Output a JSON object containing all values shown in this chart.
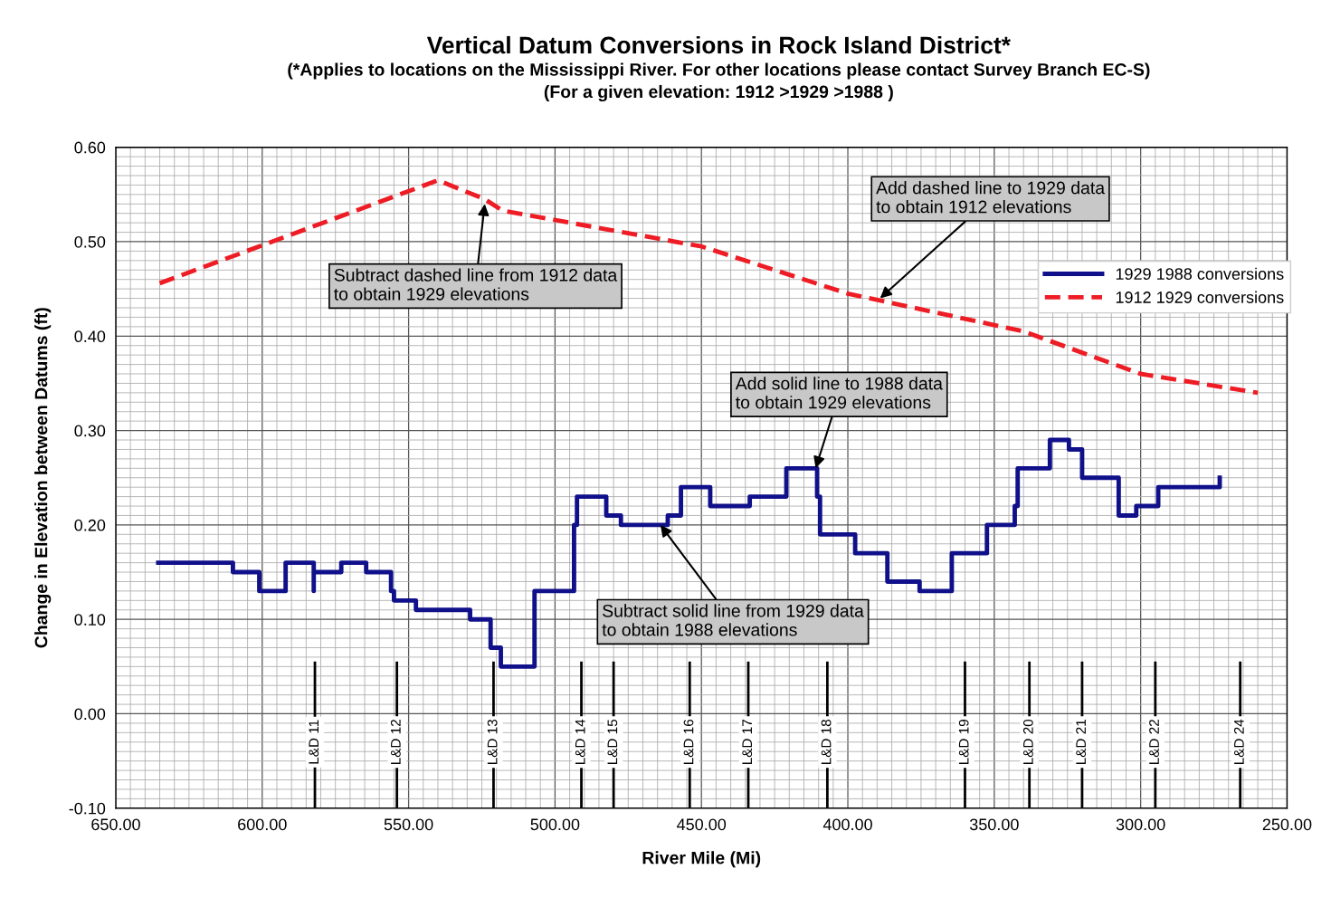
{
  "chart_data": {
    "type": "step",
    "title": "Vertical Datum Conversions in Rock Island District*",
    "subtitle": "(*Applies to locations on the Mississippi River. For other locations please contact Survey Branch EC-S)\n(For a given elevation: 1912 >1929 >1988 )",
    "xlabel": "River Mile (Mi)",
    "ylabel": "Change in Elevation between Datums (ft)",
    "xlim": [
      650,
      250
    ],
    "xticks": [
      {
        "value": 650,
        "label": "650.00"
      },
      {
        "value": 600,
        "label": "600.00"
      },
      {
        "value": 550,
        "label": "550.00"
      },
      {
        "value": 500,
        "label": "500.00"
      },
      {
        "value": 450,
        "label": "450.00"
      },
      {
        "value": 400,
        "label": "400.00"
      },
      {
        "value": 350,
        "label": "350.00"
      },
      {
        "value": 300,
        "label": "300.00"
      },
      {
        "value": 250,
        "label": "250.00"
      }
    ],
    "ylim": [
      -0.1,
      0.6
    ],
    "yticks": [
      {
        "value": -0.1,
        "label": "-0.10"
      },
      {
        "value": 0,
        "label": "0.00"
      },
      {
        "value": 0.1,
        "label": "0.10"
      },
      {
        "value": 0.2,
        "label": "0.20"
      },
      {
        "value": 0.3,
        "label": "0.30"
      },
      {
        "value": 0.4,
        "label": "0.40"
      },
      {
        "value": 0.5,
        "label": "0.50"
      },
      {
        "value": 0.6,
        "label": "0.60"
      }
    ],
    "grid": true,
    "legend": "top right",
    "series": [
      {
        "name": "1929 1988 conversions",
        "color": "#10108a",
        "line_style": "solid",
        "x": [
          635.5,
          610,
          601,
          592,
          582.4,
          582.4,
          573,
          564.5,
          556,
          555,
          547.5,
          529,
          522,
          518.5,
          507,
          493.5,
          492.5,
          482.5,
          477.5,
          461.5,
          457,
          447,
          433.5,
          421,
          410.5,
          409.5,
          397.5,
          386.5,
          375.5,
          364.5,
          352.5,
          343,
          342,
          331,
          324.5,
          320,
          307.5,
          301.5,
          294,
          273,
          273
        ],
        "values": [
          0.16,
          0.15,
          0.13,
          0.16,
          0.13,
          0.15,
          0.16,
          0.15,
          0.13,
          0.12,
          0.11,
          0.1,
          0.07,
          0.05,
          0.13,
          0.2,
          0.23,
          0.21,
          0.2,
          0.21,
          0.24,
          0.22,
          0.23,
          0.26,
          0.23,
          0.19,
          0.17,
          0.14,
          0.13,
          0.17,
          0.2,
          0.22,
          0.26,
          0.29,
          0.28,
          0.25,
          0.21,
          0.22,
          0.24,
          0.24,
          0.25
        ]
      },
      {
        "name": "1912 1929 conversions",
        "type": "line",
        "color": "#ee1c24",
        "line_style": "dashed",
        "x": [
          635,
          540,
          524,
          518,
          450,
          400,
          340,
          300,
          260
        ],
        "values": [
          0.456,
          0.565,
          0.545,
          0.533,
          0.495,
          0.445,
          0.405,
          0.36,
          0.34
        ]
      }
    ],
    "annotations": [
      {
        "text": "Subtract dashed line from 1912 data\nto obtain 1929 elevations",
        "x": 524,
        "y": 0.54
      },
      {
        "text": "Add dashed line to 1929 data\nto obtain 1912 elevations",
        "x": 389,
        "y": 0.44
      },
      {
        "text": "Add solid line to 1988 data\nto obtain 1929 elevations",
        "x": 411,
        "y": 0.26
      },
      {
        "text": "Subtract solid line from 1929 data\nto obtain 1988 elevations",
        "x": 464,
        "y": 0.2
      }
    ],
    "ref_lines": [
      {
        "axis": "x",
        "value": 582,
        "label": "L&D 11",
        "color": "#000000"
      },
      {
        "axis": "x",
        "value": 554,
        "label": "L&D 12",
        "color": "#000000"
      },
      {
        "axis": "x",
        "value": 521,
        "label": "L&D 13",
        "color": "#000000"
      },
      {
        "axis": "x",
        "value": 491,
        "label": "L&D 14",
        "color": "#000000"
      },
      {
        "axis": "x",
        "value": 480,
        "label": "L&D 15",
        "color": "#000000"
      },
      {
        "axis": "x",
        "value": 454,
        "label": "L&D 16",
        "color": "#000000"
      },
      {
        "axis": "x",
        "value": 434,
        "label": "L&D 17",
        "color": "#000000"
      },
      {
        "axis": "x",
        "value": 407,
        "label": "L&D 18",
        "color": "#000000"
      },
      {
        "axis": "x",
        "value": 360,
        "label": "L&D 19",
        "color": "#000000"
      },
      {
        "axis": "x",
        "value": 338,
        "label": "L&D 20",
        "color": "#000000"
      },
      {
        "axis": "x",
        "value": 320,
        "label": "L&D 21",
        "color": "#000000"
      },
      {
        "axis": "x",
        "value": 295,
        "label": "L&D 22",
        "color": "#000000"
      },
      {
        "axis": "x",
        "value": 266,
        "label": "L&D 24",
        "color": "#000000"
      }
    ]
  }
}
